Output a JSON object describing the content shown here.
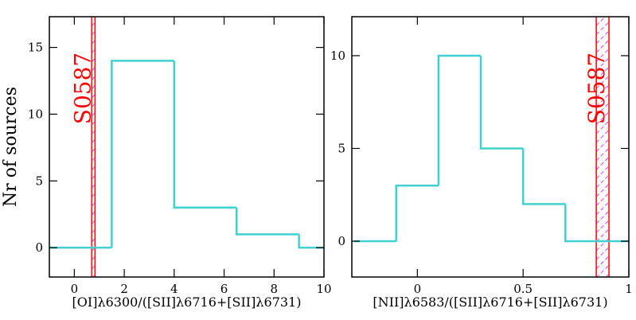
{
  "chart_data": [
    {
      "type": "histogram",
      "xlabel": "[OI]λ6300/([SII]λ6716+[SII]λ6731)",
      "ylabel": "Nr of sources",
      "bins": [
        -1,
        1.5,
        4,
        6.5,
        9,
        10
      ],
      "counts": [
        0,
        14,
        3,
        1,
        0
      ],
      "color": "#40d0d0",
      "xlim": [
        -1,
        10
      ],
      "ylim": [
        -2.2,
        17.3
      ],
      "xticks": [
        0,
        2,
        4,
        6,
        8,
        10
      ],
      "yticks": [
        0,
        5,
        10,
        15
      ],
      "band": {
        "x": [
          0.7,
          0.83
        ],
        "label": "S0587",
        "color": "#ff0000",
        "hatch_color": "#e000e0"
      }
    },
    {
      "type": "histogram",
      "xlabel": "[NII]λ6583/([SII]λ6716+[SII]λ6731)",
      "bins": [
        -0.3,
        -0.1,
        0.1,
        0.3,
        0.5,
        0.7,
        1
      ],
      "counts": [
        0,
        3,
        10,
        5,
        2,
        0
      ],
      "color": "#40d0d0",
      "xlim": [
        -0.31,
        1
      ],
      "ylim": [
        -1.93,
        12.1
      ],
      "xticks": [
        0,
        0.5,
        1
      ],
      "yticks": [
        0,
        5,
        10
      ],
      "band": {
        "x": [
          0.846,
          0.906
        ],
        "label": "S0587",
        "color": "#ff0000",
        "hatch_color": "#e000e0"
      }
    }
  ]
}
